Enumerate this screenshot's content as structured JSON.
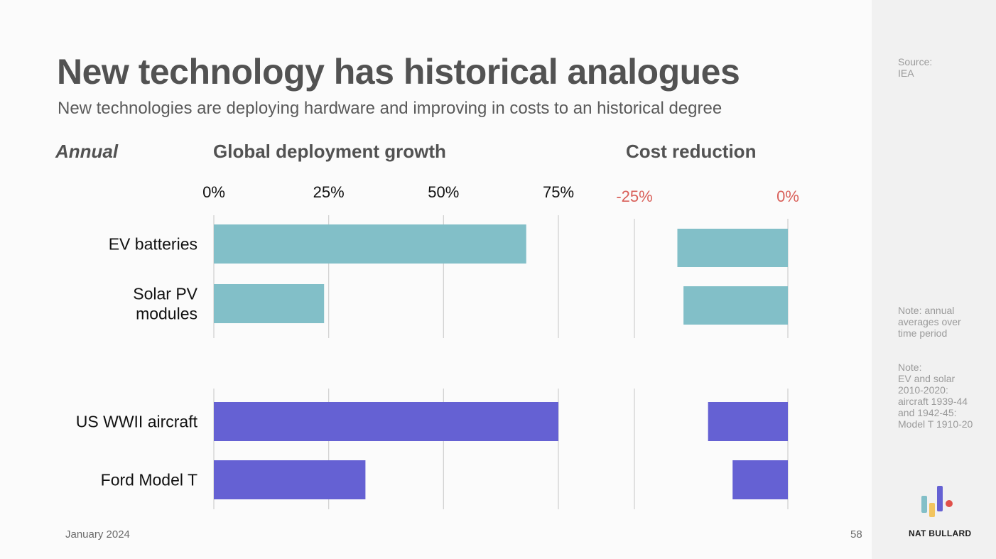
{
  "slide": {
    "title": "New technology has historical analogues",
    "subtitle": "New technologies are deploying hardware and improving in costs to an historical degree",
    "annual_label": "Annual",
    "footer_date": "January 2024",
    "page_number": "58"
  },
  "sidebar": {
    "source": "Source:\nIEA",
    "note1": "Note: annual averages over time period",
    "note2": "Note:\nEV and solar 2010-2020: aircraft 1939-44 and 1942-45: Model T 1910-20",
    "brand": "NAT BULLARD"
  },
  "colors": {
    "new_tech": "#82bfc8",
    "historical": "#6561d3",
    "cost_axis_text": "#d9605a",
    "gridline": "#cfcfcf"
  },
  "chart_data": [
    {
      "type": "bar",
      "orientation": "horizontal",
      "title": "Global deployment growth",
      "categories": [
        "EV batteries",
        "Solar PV\nmodules",
        "US WWII aircraft",
        "Ford Model T"
      ],
      "category_groups": [
        [
          "EV batteries",
          "Solar PV\nmodules"
        ],
        [
          "US WWII aircraft",
          "Ford Model T"
        ]
      ],
      "series": [
        {
          "values": [
            68,
            24,
            75,
            33
          ]
        }
      ],
      "bar_colors": [
        "new_tech",
        "new_tech",
        "historical",
        "historical"
      ],
      "xlim": [
        0,
        75
      ],
      "xticks": [
        0,
        25,
        50,
        75
      ],
      "xtick_labels": [
        "0%",
        "25%",
        "50%",
        "75%"
      ],
      "grid": true
    },
    {
      "type": "bar",
      "orientation": "horizontal",
      "title": "Cost reduction",
      "categories": [
        "EV batteries",
        "Solar PV\nmodules",
        "US WWII aircraft",
        "Ford Model T"
      ],
      "series": [
        {
          "values": [
            -18,
            -17,
            -13,
            -9
          ]
        }
      ],
      "bar_colors": [
        "new_tech",
        "new_tech",
        "historical",
        "historical"
      ],
      "xlim": [
        -25,
        0
      ],
      "xticks": [
        -25,
        0
      ],
      "xtick_labels": [
        "-25%",
        "0%"
      ],
      "grid": true
    }
  ]
}
